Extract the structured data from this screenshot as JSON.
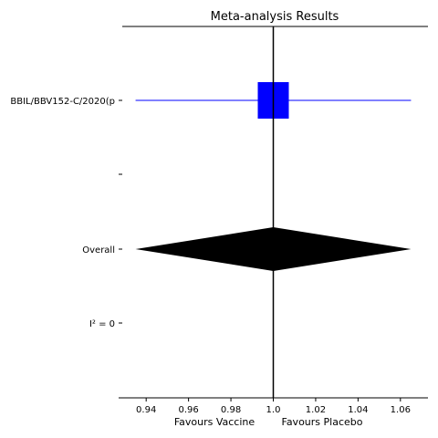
{
  "chart_data": {
    "type": "forest",
    "title": "Meta-analysis Results",
    "xlabel_left": "Favours Vaccine",
    "xlabel_right": "Favours Placebo",
    "xlim": [
      0.927,
      1.073
    ],
    "x_ticks": [
      0.94,
      0.96,
      0.98,
      1.0,
      1.02,
      1.04,
      1.06
    ],
    "x_tick_labels": [
      "0.94",
      "0.96",
      "0.98",
      "1.0",
      "1.02",
      "1.04",
      "1.06"
    ],
    "reference_line": 1.0,
    "rows": [
      {
        "label": "BBIL/BBV152-C/2020(p",
        "kind": "study",
        "estimate": 1.0,
        "ci_low": 0.935,
        "ci_high": 1.065
      },
      {
        "label": "",
        "kind": "blank"
      },
      {
        "label": "Overall",
        "kind": "overall",
        "estimate": 1.0,
        "ci_low": 0.935,
        "ci_high": 1.065
      },
      {
        "label": "I² = 0",
        "kind": "heterogeneity"
      }
    ],
    "colors": {
      "study": "#0000ff",
      "overall": "#000000"
    }
  }
}
